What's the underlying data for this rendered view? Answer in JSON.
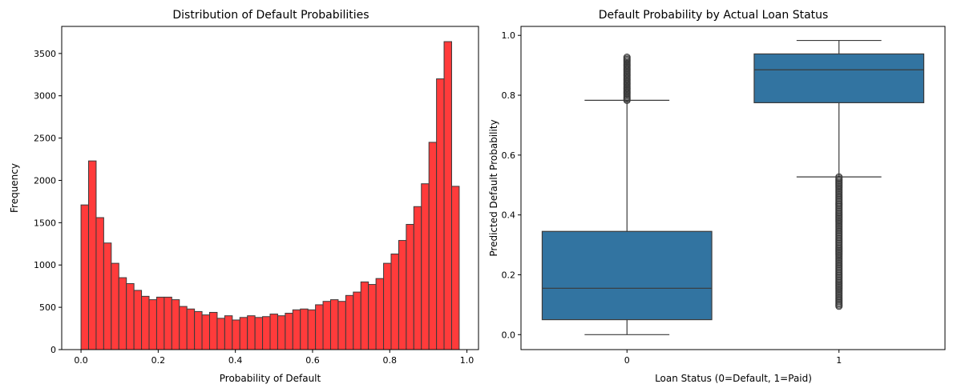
{
  "chart_data": [
    {
      "type": "histogram",
      "title": "Distribution of Default Probabilities",
      "xlabel": "Probability of Default",
      "ylabel": "Frequency",
      "xlim": [
        -0.05,
        1.03
      ],
      "ylim": [
        0,
        3820
      ],
      "xticks": [
        "0.0",
        "0.2",
        "0.4",
        "0.6",
        "0.8",
        "1.0"
      ],
      "yticks": [
        "0",
        "500",
        "1000",
        "1500",
        "2000",
        "2500",
        "3000",
        "3500"
      ],
      "bin_start": 0.0,
      "bin_width": 0.0196,
      "values": [
        1710,
        2230,
        1560,
        1260,
        1020,
        850,
        780,
        700,
        630,
        590,
        620,
        620,
        590,
        510,
        480,
        450,
        410,
        440,
        370,
        400,
        350,
        380,
        400,
        380,
        390,
        420,
        400,
        430,
        470,
        480,
        470,
        530,
        570,
        590,
        570,
        640,
        680,
        800,
        770,
        840,
        1020,
        1130,
        1290,
        1480,
        1690,
        1960,
        2450,
        3200,
        3640,
        1930
      ],
      "bar_color": "#ff3b3b",
      "edge_color": "#3a3a3a"
    },
    {
      "type": "box",
      "title": "Default Probability by Actual Loan Status",
      "xlabel": "Loan Status (0=Default, 1=Paid)",
      "ylabel": "Predicted Default Probability",
      "ylim": [
        -0.05,
        1.03
      ],
      "yticks": [
        "0.0",
        "0.2",
        "0.4",
        "0.6",
        "0.8",
        "1.0"
      ],
      "categories": [
        "0",
        "1"
      ],
      "box_color": "#3274a1",
      "line_color": "#3a3a3a",
      "boxes": [
        {
          "category": "0",
          "whisker_low": 0.0,
          "q1": 0.05,
          "median": 0.155,
          "q3": 0.345,
          "whisker_high": 0.783,
          "outliers_low": [],
          "outlier_high_range": [
            0.783,
            0.927
          ]
        },
        {
          "category": "1",
          "whisker_low": 0.527,
          "q1": 0.775,
          "median": 0.885,
          "q3": 0.938,
          "whisker_high": 0.983,
          "outlier_low_range": [
            0.095,
            0.527
          ],
          "outliers_high": []
        }
      ]
    }
  ]
}
